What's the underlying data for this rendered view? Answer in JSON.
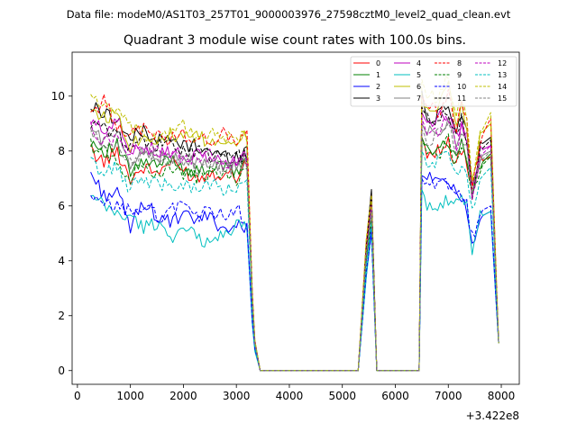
{
  "figure": {
    "suptitle": "Data file: modeM0/AS1T03_257T01_9000003976_27598cztM0_level2_quad_clean.evt"
  },
  "chart_data": {
    "type": "line",
    "title": "Quadrant 3 module wise count rates with 100.0s bins.",
    "xlabel": "",
    "ylabel": "",
    "x_offset_label": "+3.422e8",
    "xlim": [
      -100,
      8340
    ],
    "ylim": [
      -0.5,
      11.6
    ],
    "x_ticks": [
      0,
      1000,
      2000,
      3000,
      4000,
      5000,
      6000,
      7000,
      8000
    ],
    "x_tick_labels": [
      "0",
      "1000",
      "2000",
      "3000",
      "4000",
      "5000",
      "6000",
      "7000",
      "8000"
    ],
    "y_ticks": [
      0,
      2,
      4,
      6,
      8,
      10
    ],
    "y_tick_labels": [
      "0",
      "2",
      "4",
      "6",
      "8",
      "10"
    ],
    "legend_location": "top-right",
    "legend_columns": 4,
    "notes": "16 module series share one x grid; 'values' below are read off the plot at x_key points and linearly interpolated between them.",
    "x_key": [
      250,
      500,
      750,
      1000,
      1250,
      1500,
      1750,
      2000,
      2250,
      2500,
      2750,
      3000,
      3200,
      3300,
      3350,
      3450,
      3500,
      5350,
      5450,
      5550,
      5650,
      6450,
      6500,
      6600,
      6800,
      7000,
      7150,
      7250,
      7350,
      7450,
      7600,
      7800,
      7950
    ],
    "series": [
      {
        "name": "0",
        "color": "#ff0000",
        "style": "solid",
        "values": [
          8.0,
          7.6,
          8.0,
          7.0,
          7.4,
          7.2,
          7.6,
          7.3,
          7.0,
          7.2,
          7.2,
          7.1,
          7.6,
          2.5,
          1.0,
          0.0,
          0.0,
          0.0,
          4.0,
          6.4,
          0.0,
          0.0,
          8.5,
          8.0,
          8.0,
          8.3,
          7.5,
          8.0,
          7.6,
          6.6,
          7.6,
          7.8,
          1.0
        ]
      },
      {
        "name": "1",
        "color": "#008000",
        "style": "solid",
        "values": [
          8.4,
          8.0,
          8.2,
          7.2,
          7.6,
          7.4,
          7.8,
          7.4,
          7.2,
          7.4,
          7.4,
          7.2,
          7.8,
          2.5,
          1.0,
          0.0,
          0.0,
          0.0,
          4.0,
          5.4,
          0.0,
          0.0,
          8.5,
          8.0,
          8.2,
          8.4,
          7.6,
          8.2,
          7.6,
          6.6,
          7.5,
          7.9,
          1.0
        ]
      },
      {
        "name": "2",
        "color": "#0000ff",
        "style": "solid",
        "values": [
          7.2,
          6.4,
          6.5,
          5.2,
          6.2,
          5.6,
          5.4,
          5.6,
          5.5,
          5.6,
          5.2,
          5.2,
          5.3,
          1.8,
          0.8,
          0.0,
          0.0,
          0.0,
          3.4,
          5.2,
          0.0,
          0.0,
          7.1,
          7.0,
          6.9,
          6.6,
          6.5,
          6.1,
          6.0,
          4.6,
          5.6,
          5.8,
          1.0
        ]
      },
      {
        "name": "3",
        "color": "#000000",
        "style": "solid",
        "values": [
          9.6,
          9.4,
          9.2,
          8.4,
          8.8,
          8.4,
          8.4,
          8.2,
          8.2,
          8.0,
          7.8,
          7.8,
          8.0,
          2.8,
          1.0,
          0.0,
          0.0,
          0.0,
          4.6,
          6.6,
          0.0,
          0.0,
          10.2,
          9.0,
          9.3,
          9.6,
          8.6,
          9.4,
          8.6,
          6.4,
          8.2,
          8.5,
          1.0
        ]
      },
      {
        "name": "4",
        "color": "#bf00bf",
        "style": "solid",
        "values": [
          9.0,
          8.8,
          9.2,
          7.8,
          8.2,
          8.0,
          8.0,
          7.8,
          7.8,
          7.8,
          7.6,
          7.6,
          7.9,
          2.7,
          1.0,
          0.0,
          0.0,
          0.0,
          4.4,
          6.0,
          0.0,
          0.0,
          9.4,
          9.0,
          9.2,
          9.3,
          8.6,
          9.0,
          8.6,
          6.6,
          8.0,
          8.2,
          1.0
        ]
      },
      {
        "name": "5",
        "color": "#00bfbf",
        "style": "solid",
        "values": [
          6.3,
          6.0,
          5.7,
          5.6,
          5.2,
          5.4,
          4.9,
          5.1,
          4.9,
          4.6,
          5.0,
          5.3,
          5.2,
          1.7,
          0.7,
          0.0,
          0.0,
          0.0,
          3.4,
          5.0,
          0.0,
          0.0,
          6.6,
          6.1,
          6.0,
          6.2,
          6.0,
          6.2,
          6.0,
          4.4,
          5.6,
          5.8,
          1.0
        ]
      },
      {
        "name": "6",
        "color": "#bfbf00",
        "style": "solid",
        "values": [
          9.6,
          9.2,
          9.4,
          8.2,
          8.6,
          8.4,
          8.6,
          8.4,
          8.6,
          8.2,
          8.4,
          8.4,
          8.5,
          2.8,
          1.1,
          0.0,
          0.0,
          0.0,
          4.6,
          6.2,
          0.0,
          0.0,
          9.8,
          9.4,
          9.6,
          10.4,
          9.0,
          9.6,
          9.0,
          6.8,
          8.6,
          9.0,
          1.0
        ]
      },
      {
        "name": "7",
        "color": "#808080",
        "style": "solid",
        "values": [
          8.8,
          8.4,
          8.6,
          7.6,
          8.0,
          7.8,
          7.8,
          7.6,
          7.6,
          7.4,
          7.4,
          7.4,
          7.6,
          2.6,
          1.0,
          0.0,
          0.0,
          0.0,
          4.2,
          5.8,
          0.0,
          0.0,
          9.0,
          8.6,
          8.8,
          9.0,
          8.2,
          8.6,
          8.2,
          6.4,
          7.8,
          8.0,
          1.0
        ]
      },
      {
        "name": "8",
        "color": "#ff0000",
        "style": "dashed",
        "values": [
          9.4,
          9.8,
          9.0,
          8.6,
          8.8,
          8.6,
          8.4,
          8.6,
          8.4,
          8.4,
          8.6,
          8.4,
          8.6,
          2.9,
          1.1,
          0.0,
          0.0,
          0.0,
          4.6,
          6.4,
          0.0,
          0.0,
          10.0,
          9.6,
          9.4,
          10.0,
          8.8,
          10.0,
          9.0,
          6.6,
          8.4,
          9.2,
          1.0
        ]
      },
      {
        "name": "9",
        "color": "#008000",
        "style": "dashed",
        "values": [
          8.2,
          8.0,
          7.6,
          7.0,
          7.6,
          7.2,
          7.4,
          7.2,
          7.0,
          7.2,
          7.2,
          6.8,
          7.4,
          2.4,
          0.9,
          0.0,
          0.0,
          0.0,
          4.0,
          5.6,
          0.0,
          0.0,
          8.4,
          8.0,
          7.8,
          8.4,
          7.4,
          8.0,
          7.6,
          6.4,
          7.4,
          7.8,
          1.0
        ]
      },
      {
        "name": "10",
        "color": "#0000ff",
        "style": "dashed",
        "values": [
          6.2,
          6.0,
          6.0,
          5.8,
          6.0,
          5.6,
          5.8,
          6.2,
          5.6,
          5.8,
          5.6,
          6.0,
          5.3,
          1.8,
          0.8,
          0.0,
          0.0,
          0.0,
          3.6,
          5.0,
          0.0,
          0.0,
          7.0,
          6.6,
          6.8,
          6.8,
          6.4,
          6.4,
          6.0,
          4.8,
          5.8,
          6.0,
          1.0
        ]
      },
      {
        "name": "11",
        "color": "#000000",
        "style": "dashed",
        "values": [
          9.0,
          8.8,
          8.6,
          8.2,
          8.4,
          8.2,
          8.2,
          8.0,
          8.0,
          7.8,
          7.8,
          7.8,
          7.8,
          2.7,
          1.0,
          0.0,
          0.0,
          0.0,
          4.4,
          6.4,
          0.0,
          0.0,
          9.6,
          9.2,
          9.0,
          9.4,
          8.6,
          9.2,
          8.4,
          6.4,
          8.0,
          8.4,
          1.0
        ]
      },
      {
        "name": "12",
        "color": "#bf00bf",
        "style": "dashed",
        "values": [
          8.8,
          8.4,
          8.4,
          8.0,
          8.2,
          8.0,
          7.8,
          7.8,
          7.6,
          7.8,
          7.6,
          7.6,
          7.6,
          2.6,
          1.0,
          0.0,
          0.0,
          0.0,
          4.2,
          6.0,
          0.0,
          0.0,
          9.2,
          8.6,
          8.8,
          9.2,
          8.2,
          8.8,
          8.2,
          6.4,
          7.8,
          8.2,
          1.0
        ]
      },
      {
        "name": "13",
        "color": "#00bfbf",
        "style": "dashed",
        "values": [
          7.6,
          7.2,
          7.4,
          6.6,
          7.0,
          6.8,
          6.8,
          6.8,
          6.6,
          6.8,
          6.6,
          6.6,
          6.8,
          2.3,
          0.9,
          0.0,
          0.0,
          0.0,
          3.8,
          5.4,
          0.0,
          0.0,
          8.0,
          7.6,
          7.6,
          8.0,
          7.2,
          7.6,
          7.2,
          5.8,
          7.0,
          7.4,
          1.0
        ]
      },
      {
        "name": "14",
        "color": "#bfbf00",
        "style": "dashed",
        "values": [
          10.1,
          9.6,
          9.4,
          8.8,
          8.6,
          8.4,
          8.8,
          9.0,
          8.4,
          8.6,
          8.4,
          8.6,
          8.4,
          2.9,
          1.1,
          0.0,
          0.0,
          0.0,
          4.8,
          6.4,
          0.0,
          0.0,
          10.6,
          10.0,
          10.0,
          10.8,
          9.2,
          10.0,
          9.2,
          6.8,
          8.6,
          9.4,
          1.0
        ]
      },
      {
        "name": "15",
        "color": "#808080",
        "style": "dashed",
        "values": [
          8.6,
          8.2,
          8.2,
          7.6,
          8.0,
          7.8,
          7.6,
          7.6,
          7.4,
          7.6,
          7.4,
          7.4,
          7.6,
          2.5,
          1.0,
          0.0,
          0.0,
          0.0,
          4.2,
          5.8,
          0.0,
          0.0,
          8.8,
          8.4,
          8.6,
          8.8,
          8.0,
          8.6,
          8.0,
          6.2,
          7.6,
          8.0,
          1.0
        ]
      }
    ]
  }
}
